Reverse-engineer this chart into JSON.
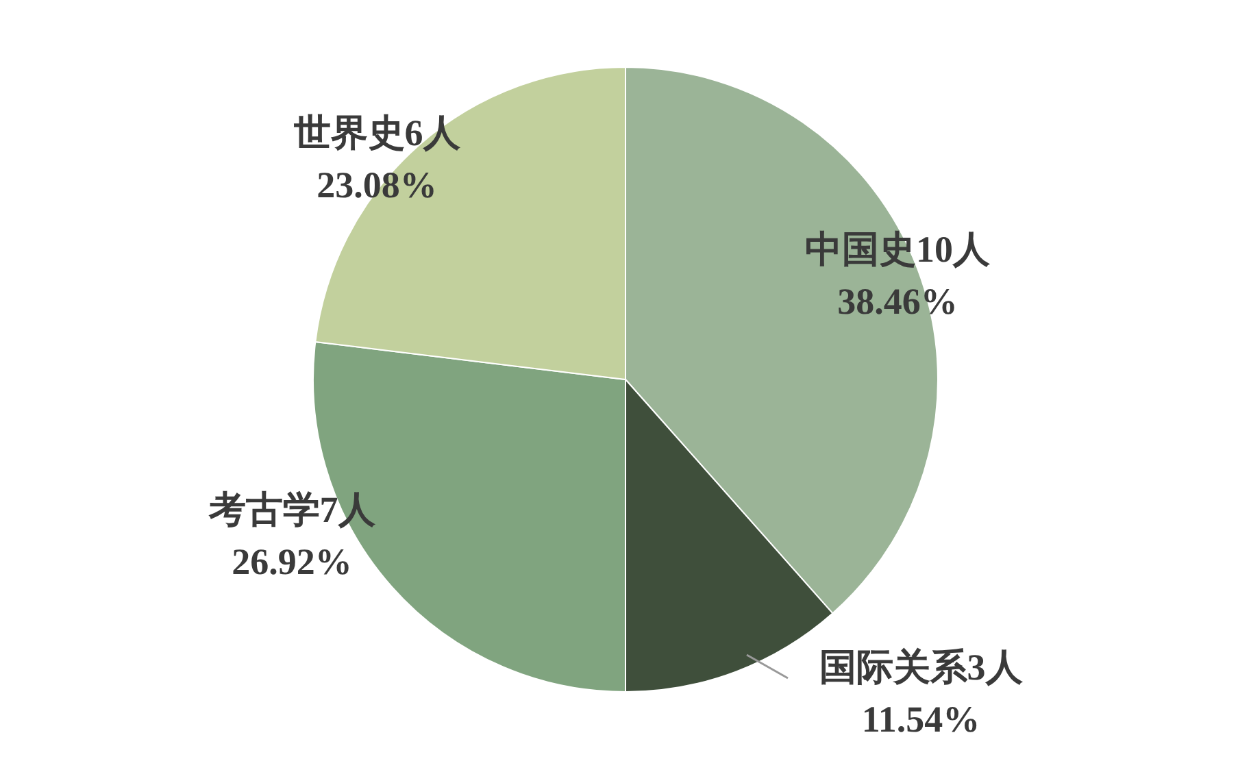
{
  "chart_data": {
    "type": "pie",
    "categories": [
      "中国史",
      "国际关系",
      "考古学",
      "世界史"
    ],
    "values": [
      10,
      3,
      7,
      6
    ],
    "value_labels": [
      "10人\n38.46%",
      "3人\n11.54%",
      "7人\n26.92%",
      "6人\n23.08%"
    ],
    "colors": [
      "#9bb497",
      "#3f4f3b",
      "#80a47f",
      "#c2d09d"
    ]
  }
}
